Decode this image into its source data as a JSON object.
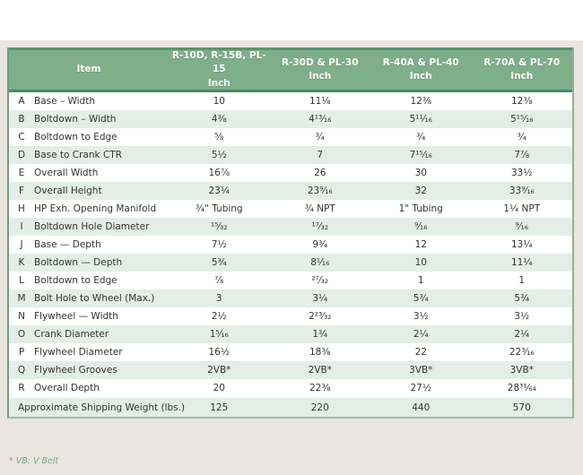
{
  "table": {
    "item_header": "Item",
    "columns": [
      {
        "model": "R-10D, R-15B, PL-15",
        "unit": "Inch"
      },
      {
        "model": "R-30D & PL-30",
        "unit": "Inch"
      },
      {
        "model": "R-40A & PL-40",
        "unit": "Inch"
      },
      {
        "model": "R-70A & PL-70",
        "unit": "Inch"
      }
    ],
    "rows": [
      {
        "key": "A",
        "item": "Base – Width",
        "values": [
          "10",
          "11⅛",
          "12⅜",
          "12⅜"
        ]
      },
      {
        "key": "B",
        "item": "Boltdown – Width",
        "values": [
          "4⅜",
          "4¹³⁄₁₆",
          "5¹¹⁄₁₆",
          "5¹⁵⁄₁₆"
        ]
      },
      {
        "key": "C",
        "item": "Boltdown to Edge",
        "values": [
          "⅝",
          "¾",
          "¾",
          "¾"
        ]
      },
      {
        "key": "D",
        "item": "Base to Crank CTR",
        "values": [
          "5½",
          "7",
          "7¹⁵⁄₁₆",
          "7⅞"
        ]
      },
      {
        "key": "E",
        "item": "Overall Width",
        "values": [
          "16⅞",
          "26",
          "30",
          "33½"
        ]
      },
      {
        "key": "F",
        "item": "Overall Height",
        "values": [
          "23¼",
          "23⁹⁄₁₆",
          "32",
          "33⁹⁄₁₆"
        ]
      },
      {
        "key": "H",
        "item": "HP Exh. Opening Manifold",
        "values": [
          "¾\" Tubing",
          "¾ NPT",
          "1\" Tubing",
          "1¼ NPT"
        ]
      },
      {
        "key": "I",
        "item": "Boltdown Hole Diameter",
        "values": [
          "¹⁵⁄₃₂",
          "¹⁷⁄₃₂",
          "⁹⁄₁₆",
          "⁹⁄₁₆"
        ]
      },
      {
        "key": "J",
        "item": "Base — Depth",
        "values": [
          "7½",
          "9¾",
          "12",
          "13¼"
        ]
      },
      {
        "key": "K",
        "item": "Boltdown — Depth",
        "values": [
          "5¾",
          "8¹⁄₁₆",
          "10",
          "11¼"
        ]
      },
      {
        "key": "L",
        "item": "Boltdown to Edge",
        "values": [
          "⅞",
          "²⁷⁄₃₂",
          "1",
          "1"
        ]
      },
      {
        "key": "M",
        "item": "Bolt Hole to Wheel (Max.)",
        "values": [
          "3",
          "3¼",
          "5¾",
          "5¾"
        ]
      },
      {
        "key": "N",
        "item": "Flywheel — Width",
        "values": [
          "2½",
          "2²³⁄₃₂",
          "3½",
          "3½"
        ]
      },
      {
        "key": "O",
        "item": "Crank Diameter",
        "values": [
          "1⁵⁄₁₆",
          "1¾",
          "2¼",
          "2¼"
        ]
      },
      {
        "key": "P",
        "item": "Flywheel Diameter",
        "values": [
          "16½",
          "18⅜",
          "22",
          "22³⁄₁₆"
        ]
      },
      {
        "key": "Q",
        "item": "Flywheel Grooves",
        "values": [
          "2VB*",
          "2VB*",
          "3VB*",
          "3VB*"
        ]
      },
      {
        "key": "R",
        "item": "Overall Depth",
        "values": [
          "20",
          "22⅜",
          "27½",
          "28³¹⁄₆₄"
        ]
      }
    ],
    "summary_row": {
      "label": "Approximate Shipping Weight (lbs.)",
      "values": [
        "125",
        "220",
        "440",
        "570"
      ]
    },
    "footnote": "* VB: V Belt"
  },
  "colors": {
    "header_green": "#7fae8a",
    "header_accent_dark": "#4d8a66",
    "row_tint_green": "#e3eee6",
    "panel_background": "#e9e6e0",
    "footnote_green": "#76a98a",
    "text": "#333333"
  }
}
